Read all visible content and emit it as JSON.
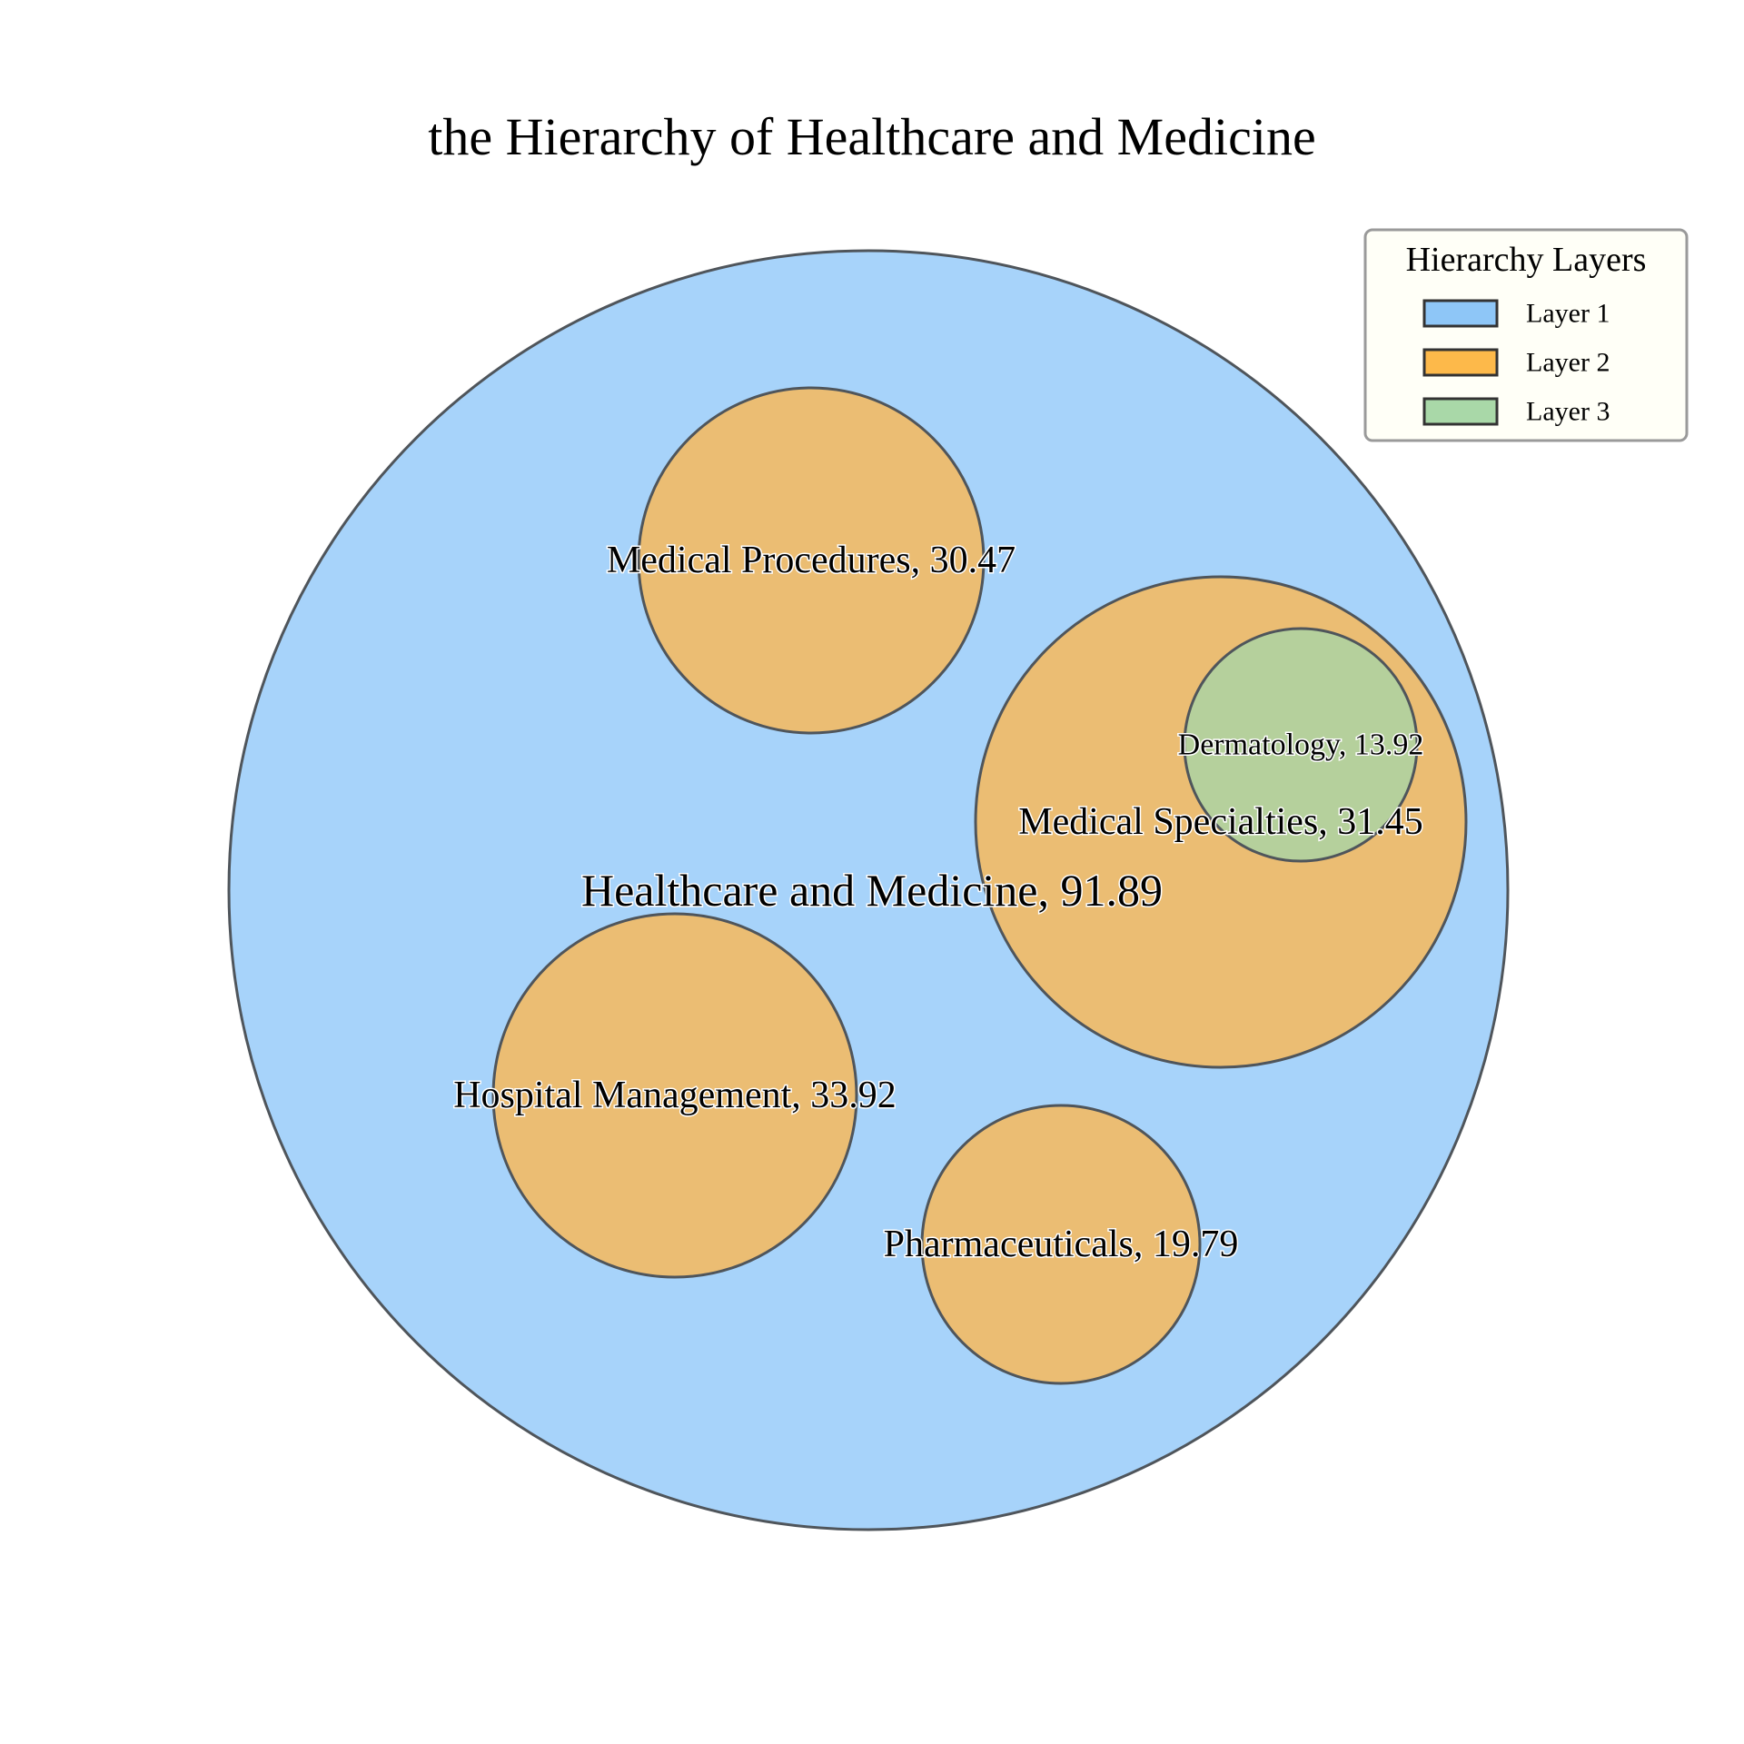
{
  "title": "the Hierarchy of Healthcare and Medicine",
  "legend": {
    "title": "Hierarchy Layers",
    "items": [
      {
        "label": "Layer 1",
        "color": "#8ec6f7"
      },
      {
        "label": "Layer 2",
        "color": "#fdb94a"
      },
      {
        "label": "Layer 3",
        "color": "#a9d8a8"
      }
    ]
  },
  "chart_data": {
    "type": "circle-packing",
    "title": "the Hierarchy of Healthcare and Medicine",
    "legend_title": "Hierarchy Layers",
    "legend_placement": "top-right",
    "nodes": [
      {
        "name": "Healthcare and Medicine",
        "value": 91.89,
        "layer": 1,
        "parent": null,
        "label": "Healthcare and Medicine, 91.89"
      },
      {
        "name": "Medical Procedures",
        "value": 30.47,
        "layer": 2,
        "parent": "Healthcare and Medicine",
        "label": "Medical Procedures, 30.47"
      },
      {
        "name": "Medical Specialties",
        "value": 31.45,
        "layer": 2,
        "parent": "Healthcare and Medicine",
        "label": "Medical Specialties, 31.45"
      },
      {
        "name": "Dermatology",
        "value": 13.92,
        "layer": 3,
        "parent": "Medical Specialties",
        "label": "Dermatology, 13.92"
      },
      {
        "name": "Hospital Management",
        "value": 33.92,
        "layer": 2,
        "parent": "Healthcare and Medicine",
        "label": "Hospital Management, 33.92"
      },
      {
        "name": "Pharmaceuticals",
        "value": 19.79,
        "layer": 2,
        "parent": "Healthcare and Medicine",
        "label": "Pharmaceuticals, 19.79"
      }
    ],
    "layer_fill_colors": {
      "1": "#a7d3fa",
      "2": "#ebbd73",
      "3": "#b5d09c"
    },
    "outline_color": "#4f555b"
  }
}
